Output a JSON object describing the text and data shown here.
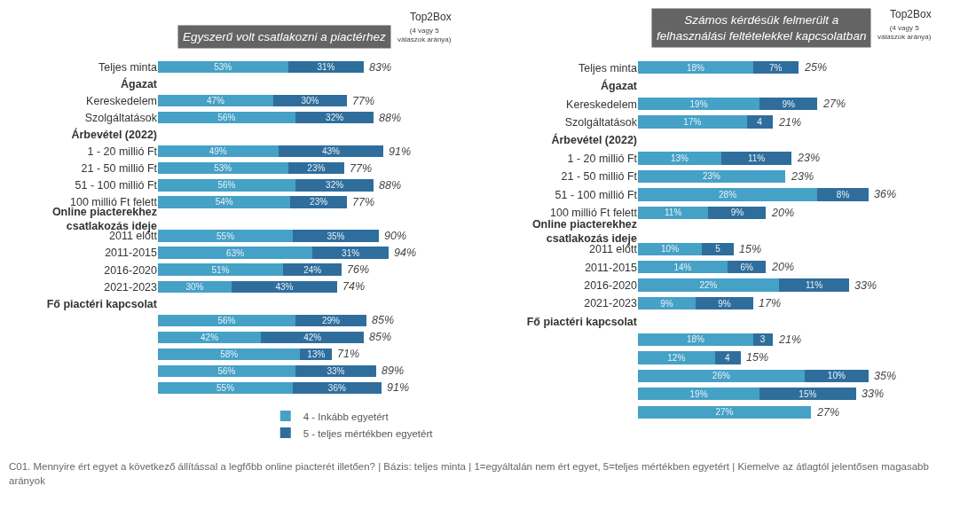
{
  "chart_data": [
    {
      "type": "bar",
      "orientation": "horizontal",
      "stacked": true,
      "title": "Egyszerű volt csatlakozni a piactérhez",
      "tick_labels": "y",
      "legend": "bottom",
      "categories": [
        "Teljes minta",
        "Ágazat",
        "Kereskedelem",
        "Szolgáltatások",
        "Árbevétel (2022)",
        "1 - 20 millió Ft",
        "21 - 50 millió Ft",
        "51 - 100 millió Ft",
        "100 millió Ft felett",
        "Online piacterekhez csatlakozás ideje",
        "2011 előtt",
        "2011-2015",
        "2016-2020",
        "2021-2023",
        "Fő piactéri kapcsolat",
        null,
        null,
        null,
        null,
        null
      ],
      "series": [
        {
          "name": "4 - Inkább egyetért",
          "color": "#45a1c6",
          "values": [
            53,
            null,
            47,
            56,
            null,
            49,
            53,
            56,
            54,
            null,
            55,
            63,
            51,
            30,
            null,
            56,
            42,
            58,
            56,
            55
          ],
          "value_labels": [
            "53%",
            null,
            "47%",
            "56%",
            null,
            "49%",
            "53%",
            "56%",
            "54%",
            null,
            "55%",
            "63%",
            "51%",
            "30%",
            null,
            "56%",
            "42%",
            "58%",
            "56%",
            "55%"
          ]
        },
        {
          "name": "5 - teljes mértékben egyetért",
          "color": "#2f6e9c",
          "values": [
            31,
            null,
            30,
            32,
            null,
            43,
            23,
            32,
            23,
            null,
            35,
            31,
            24,
            43,
            null,
            29,
            42,
            13,
            33,
            36
          ],
          "value_labels": [
            "31%",
            null,
            "30%",
            "32%",
            null,
            "43%",
            "23%",
            "32%",
            "23%",
            null,
            "35%",
            "31%",
            "24%",
            "43%",
            null,
            "29%",
            "42%",
            "13%",
            "33%",
            "36%"
          ]
        }
      ],
      "totals": [
        "83%",
        null,
        "77%",
        "88%",
        null,
        "91%",
        "77%",
        "88%",
        "77%",
        null,
        "90%",
        "94%",
        "76%",
        "74%",
        null,
        "85%",
        "85%",
        "71%",
        "89%",
        "91%"
      ],
      "annotations": [
        "Top2Box",
        "(4 vagy 5 válaszok aránya)",
        "C01. Mennyire ért egyet a következő állítással a legfőbb online piacterét illetően? | Bázis: teljes minta | 1=egyáltalán nem ért egyet, 5=teljes mértékben egyetért | Kiemelve az átlagtól jelentősen magasabb arányok"
      ]
    },
    {
      "type": "bar",
      "orientation": "horizontal",
      "stacked": true,
      "title": "Számos kérdésük felmerült a\nfelhasználási feltételekkel kapcsolatban",
      "tick_labels": "y",
      "categories": [
        "Teljes minta",
        "Ágazat",
        "Kereskedelem",
        "Szolgáltatások",
        "Árbevétel (2022)",
        "1 - 20 millió Ft",
        "21 - 50 millió Ft",
        "51 - 100 millió Ft",
        "100 millió Ft felett",
        "Online piacterekhez csatlakozás ideje",
        "2011 előtt",
        "2011-2015",
        "2016-2020",
        "2021-2023",
        "Fő piactéri kapcsolat",
        null,
        null,
        null,
        null,
        null
      ],
      "series": [
        {
          "color": "#45a1c6",
          "values": [
            18,
            null,
            19,
            17,
            null,
            13,
            23,
            28,
            11,
            null,
            10,
            14,
            22,
            9,
            null,
            18,
            12,
            26,
            19,
            27
          ],
          "value_labels": [
            "18%",
            null,
            "19%",
            "17%",
            null,
            "13%",
            "23%",
            "28%",
            "11%",
            null,
            "10%",
            "14%",
            "22%",
            "9%",
            null,
            "18%",
            "12%",
            "26%",
            "19%",
            "27%"
          ]
        },
        {
          "color": "#2f6e9c",
          "values": [
            7,
            null,
            9,
            4,
            null,
            11,
            null,
            8,
            9,
            null,
            5,
            6,
            11,
            9,
            null,
            3,
            4,
            10,
            15,
            null
          ],
          "value_labels": [
            "7%",
            null,
            "9%",
            "4",
            null,
            "11%",
            null,
            "8%",
            "9%",
            null,
            "5",
            "6%",
            "11%",
            "9%",
            null,
            "3",
            "4",
            "10%",
            "15%",
            null
          ]
        }
      ],
      "totals": [
        "25%",
        null,
        "27%",
        "21%",
        null,
        "23%",
        "23%",
        "36%",
        "20%",
        null,
        "15%",
        "20%",
        "33%",
        "17%",
        null,
        "21%",
        "15%",
        "35%",
        "33%",
        "27%"
      ],
      "annotations": [
        "Top2Box",
        "(4 vagy 5 válaszok aránya)"
      ]
    }
  ]
}
